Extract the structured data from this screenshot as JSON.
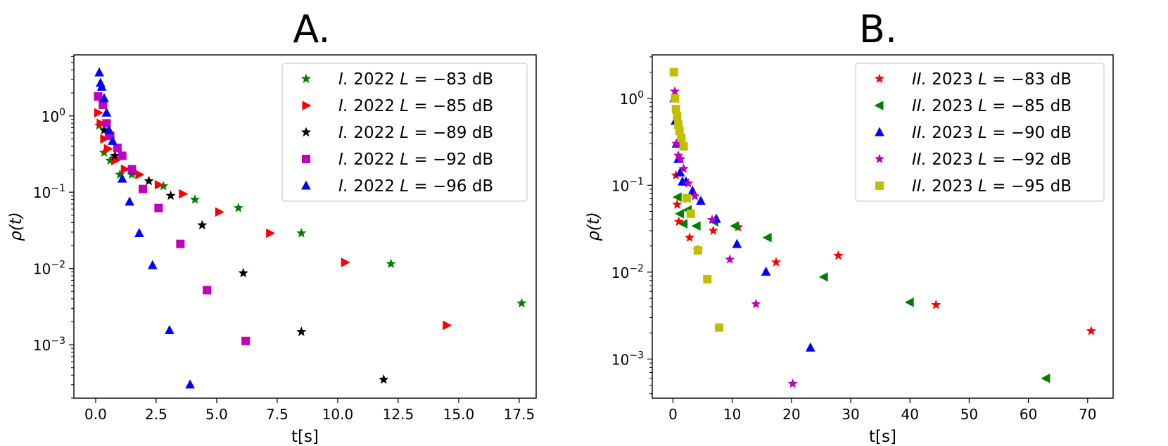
{
  "chart_data": [
    {
      "type": "scatter",
      "panel": "A",
      "title": "A.",
      "xlabel": "t[s]",
      "ylabel": "ρ(t)",
      "xscale": "linear",
      "yscale": "log",
      "xlim": [
        -0.9,
        18.2
      ],
      "ylim_log10": [
        -3.7,
        0.8
      ],
      "xticks": [
        {
          "value": 0.0,
          "label": "0.0"
        },
        {
          "value": 2.5,
          "label": "2.5"
        },
        {
          "value": 5.0,
          "label": "5.0"
        },
        {
          "value": 7.5,
          "label": "7.5"
        },
        {
          "value": 10.0,
          "label": "10.0"
        },
        {
          "value": 12.5,
          "label": "12.5"
        },
        {
          "value": 15.0,
          "label": "15.0"
        },
        {
          "value": 17.5,
          "label": "17.5"
        }
      ],
      "yticks": [
        {
          "exp": 0,
          "label": "10^0"
        },
        {
          "exp": -1,
          "label": "10^-1"
        },
        {
          "exp": -2,
          "label": "10^-2"
        },
        {
          "exp": -3,
          "label": "10^-3"
        }
      ],
      "legend_position": "top-right",
      "series": [
        {
          "name": "I. 2022 L = −83 dB",
          "prefix": "I.",
          "year": "2022",
          "level": "−83 dB",
          "marker": "star",
          "color": "#008000",
          "x": [
            0.15,
            0.35,
            0.6,
            1.0,
            1.5,
            2.8,
            4.1,
            5.9,
            8.5,
            12.2,
            17.6
          ],
          "y": [
            0.75,
            0.33,
            0.26,
            0.17,
            0.17,
            0.12,
            0.08,
            0.062,
            0.029,
            0.0115,
            0.0035
          ]
        },
        {
          "name": "I. 2022 L = −85 dB",
          "prefix": "I.",
          "year": "2022",
          "level": "−85 dB",
          "marker": "triangle-right",
          "color": "#ff0000",
          "x": [
            0.1,
            0.2,
            0.35,
            0.5,
            0.8,
            1.2,
            1.8,
            2.6,
            3.6,
            5.1,
            7.2,
            10.3,
            14.5
          ],
          "y": [
            1.1,
            0.8,
            0.5,
            0.37,
            0.26,
            0.2,
            0.17,
            0.125,
            0.095,
            0.055,
            0.029,
            0.012,
            0.0018
          ]
        },
        {
          "name": "I. 2022 L = −89 dB",
          "prefix": "I.",
          "year": "2022",
          "level": "−89 dB",
          "marker": "star",
          "color": "#000000",
          "x": [
            0.35,
            0.5,
            0.8,
            1.5,
            2.2,
            3.1,
            4.4,
            6.1,
            8.5,
            11.9
          ],
          "y": [
            0.65,
            0.6,
            0.3,
            0.19,
            0.14,
            0.09,
            0.037,
            0.0087,
            0.00148,
            0.00035
          ]
        },
        {
          "name": "I. 2022 L = −92 dB",
          "prefix": "I.",
          "year": "2022",
          "level": "−92 dB",
          "marker": "square",
          "color": "#bf00bf",
          "x": [
            0.1,
            0.3,
            0.45,
            0.6,
            0.9,
            1.1,
            1.5,
            1.95,
            2.6,
            3.5,
            4.6,
            6.2
          ],
          "y": [
            1.8,
            1.4,
            0.8,
            0.55,
            0.38,
            0.3,
            0.2,
            0.11,
            0.062,
            0.021,
            0.0052,
            0.00112
          ]
        },
        {
          "name": "I. 2022 L = −96 dB",
          "prefix": "I.",
          "year": "2022",
          "level": "−96 dB",
          "marker": "triangle-up",
          "color": "#0000ff",
          "x": [
            0.15,
            0.2,
            0.25,
            0.35,
            0.45,
            0.55,
            0.7,
            1.1,
            1.4,
            1.8,
            2.35,
            3.05,
            3.9
          ],
          "y": [
            3.7,
            2.7,
            2.4,
            1.7,
            1.1,
            0.65,
            0.47,
            0.15,
            0.075,
            0.029,
            0.011,
            0.00155,
            0.0003
          ]
        }
      ]
    },
    {
      "type": "scatter",
      "panel": "B",
      "title": "B.",
      "xlabel": "t[s]",
      "ylabel": "ρ(t)",
      "xscale": "linear",
      "yscale": "log",
      "xlim": [
        -3.5,
        74.3
      ],
      "ylim_log10": [
        -3.45,
        0.5
      ],
      "xticks": [
        {
          "value": 0,
          "label": "0"
        },
        {
          "value": 10,
          "label": "10"
        },
        {
          "value": 20,
          "label": "20"
        },
        {
          "value": 30,
          "label": "30"
        },
        {
          "value": 40,
          "label": "40"
        },
        {
          "value": 50,
          "label": "50"
        },
        {
          "value": 60,
          "label": "60"
        },
        {
          "value": 70,
          "label": "70"
        }
      ],
      "yticks": [
        {
          "exp": 0,
          "label": "10^0"
        },
        {
          "exp": -1,
          "label": "10^-1"
        },
        {
          "exp": -2,
          "label": "10^-2"
        },
        {
          "exp": -3,
          "label": "10^-3"
        }
      ],
      "legend_position": "top-right",
      "series": [
        {
          "name": "II. 2023 L = −83 dB",
          "prefix": "II.",
          "year": "2023",
          "level": "−83 dB",
          "marker": "star",
          "color": "#ff0000",
          "x": [
            0.5,
            0.7,
            1.0,
            2.8,
            4.2,
            6.8,
            11.0,
            17.4,
            27.9,
            44.4,
            70.6
          ],
          "y": [
            0.13,
            0.06,
            0.038,
            0.025,
            0.018,
            0.03,
            0.033,
            0.013,
            0.0155,
            0.0042,
            0.0021
          ]
        },
        {
          "name": "II. 2023 L = −85 dB",
          "prefix": "II.",
          "year": "2023",
          "level": "−85 dB",
          "marker": "triangle-left",
          "color": "#008000",
          "x": [
            0.8,
            1.2,
            1.8,
            2.5,
            4.0,
            7.0,
            10.5,
            16.0,
            25.5,
            40.0,
            63.0
          ],
          "y": [
            0.073,
            0.047,
            0.036,
            0.052,
            0.034,
            0.038,
            0.034,
            0.025,
            0.0088,
            0.0045,
            0.0006
          ]
        },
        {
          "name": "II. 2023 L = −90 dB",
          "prefix": "II.",
          "year": "2023",
          "level": "−90 dB",
          "marker": "triangle-up",
          "color": "#0000ff",
          "x": [
            0.2,
            0.4,
            0.6,
            0.9,
            1.2,
            1.6,
            2.2,
            3.3,
            4.7,
            7.3,
            10.8,
            15.7,
            23.2
          ],
          "y": [
            1.0,
            0.55,
            0.3,
            0.2,
            0.14,
            0.11,
            0.11,
            0.086,
            0.066,
            0.041,
            0.021,
            0.0101,
            0.00135
          ]
        },
        {
          "name": "II. 2023 L = −92 dB",
          "prefix": "II.",
          "year": "2023",
          "level": "−92 dB",
          "marker": "star",
          "color": "#bf00bf",
          "x": [
            0.3,
            0.6,
            0.9,
            1.3,
            1.8,
            2.6,
            3.7,
            6.6,
            9.6,
            14.0,
            20.2
          ],
          "y": [
            1.2,
            0.3,
            0.22,
            0.2,
            0.155,
            0.105,
            0.075,
            0.04,
            0.014,
            0.0043,
            0.00052
          ]
        },
        {
          "name": "II. 2023 L = −95 dB",
          "prefix": "II.",
          "year": "2023",
          "level": "−95 dB",
          "marker": "square",
          "color": "#bfbf00",
          "x": [
            0.15,
            0.35,
            0.5,
            0.7,
            0.9,
            1.1,
            1.4,
            1.8,
            2.3,
            3.0,
            4.2,
            5.8,
            7.8
          ],
          "y": [
            2.0,
            1.0,
            0.75,
            0.62,
            0.5,
            0.42,
            0.35,
            0.28,
            0.071,
            0.047,
            0.0178,
            0.0083,
            0.0023
          ]
        }
      ]
    }
  ]
}
